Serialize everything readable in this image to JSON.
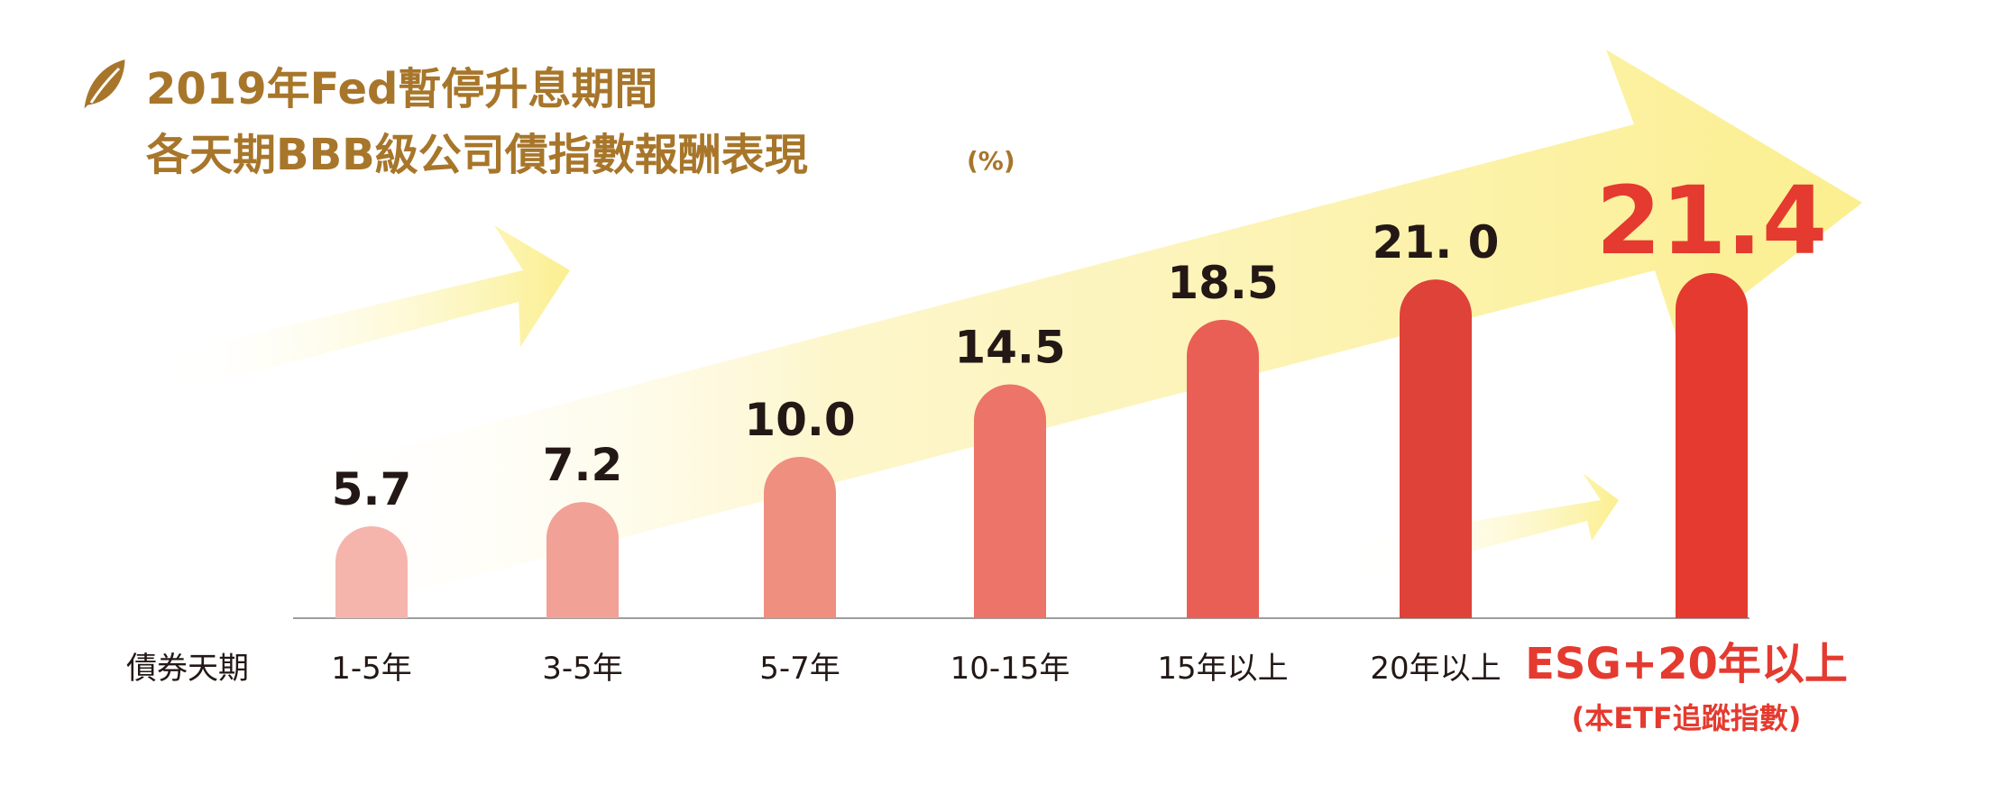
{
  "chart_data": {
    "type": "bar",
    "title_line1": "2019年Fed暫停升息期間",
    "title_line2": "各天期BBB級公司債指數報酬表現",
    "unit": "(%)",
    "xlabel": "債券天期",
    "categories": [
      "1-5年",
      "3-5年",
      "5-7年",
      "10-15年",
      "15年以上",
      "20年以上",
      "ESG+20年以上"
    ],
    "highlight_sublabel": "(本ETF追蹤指數)",
    "values": [
      5.7,
      7.2,
      10.0,
      14.5,
      18.5,
      21.0,
      21.4
    ],
    "value_labels": [
      "5.7",
      "7.2",
      "10.0",
      "14.5",
      "18.5",
      "21. 0",
      "21.4"
    ],
    "highlight_index": 6,
    "ylim": [
      0,
      24
    ],
    "grid": false,
    "colors": {
      "title": "#A7762A",
      "leaf": "#A7762A",
      "highlight_text": "#E53A2F",
      "bars": [
        "#F5B5AD",
        "#F2A196",
        "#EF8F80",
        "#EC7468",
        "#EA5F55",
        "#DE4238",
        "#E53A2F"
      ],
      "arrow": "#FBEF8F"
    },
    "icons": {
      "title_icon": "leaf-icon"
    }
  }
}
